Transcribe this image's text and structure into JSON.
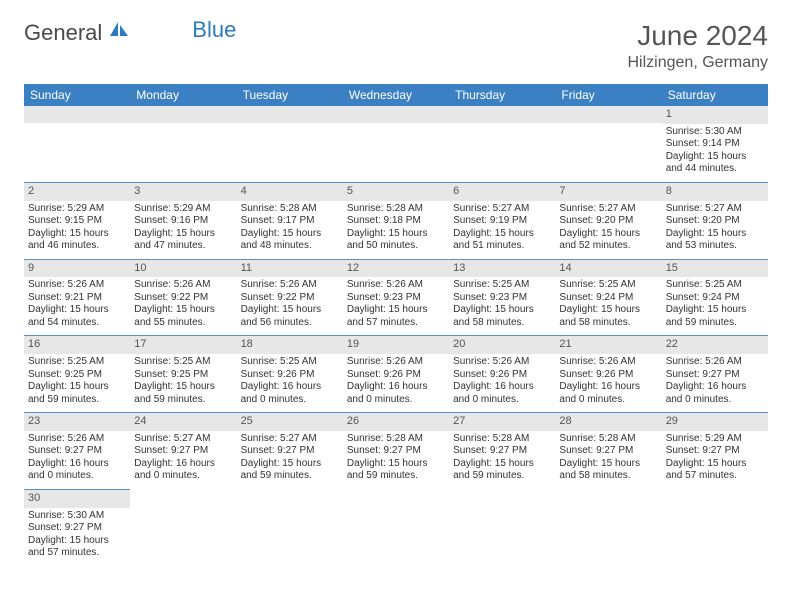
{
  "logo": {
    "text1": "General",
    "text2": "Blue"
  },
  "title": "June 2024",
  "location": "Hilzingen, Germany",
  "colors": {
    "header_bg": "#3b80c2",
    "header_text": "#ffffff",
    "daynum_bg": "#e7e7e7",
    "daynum_text": "#555555",
    "cell_text": "#333333",
    "border": "#5b8fc7",
    "logo_gray": "#4a4a4a",
    "logo_blue": "#2b7bbf",
    "title_color": "#555555"
  },
  "day_headers": [
    "Sunday",
    "Monday",
    "Tuesday",
    "Wednesday",
    "Thursday",
    "Friday",
    "Saturday"
  ],
  "weeks": [
    [
      {
        "day": "",
        "lines": []
      },
      {
        "day": "",
        "lines": []
      },
      {
        "day": "",
        "lines": []
      },
      {
        "day": "",
        "lines": []
      },
      {
        "day": "",
        "lines": []
      },
      {
        "day": "",
        "lines": []
      },
      {
        "day": "1",
        "lines": [
          "Sunrise: 5:30 AM",
          "Sunset: 9:14 PM",
          "Daylight: 15 hours",
          "and 44 minutes."
        ]
      }
    ],
    [
      {
        "day": "2",
        "lines": [
          "Sunrise: 5:29 AM",
          "Sunset: 9:15 PM",
          "Daylight: 15 hours",
          "and 46 minutes."
        ]
      },
      {
        "day": "3",
        "lines": [
          "Sunrise: 5:29 AM",
          "Sunset: 9:16 PM",
          "Daylight: 15 hours",
          "and 47 minutes."
        ]
      },
      {
        "day": "4",
        "lines": [
          "Sunrise: 5:28 AM",
          "Sunset: 9:17 PM",
          "Daylight: 15 hours",
          "and 48 minutes."
        ]
      },
      {
        "day": "5",
        "lines": [
          "Sunrise: 5:28 AM",
          "Sunset: 9:18 PM",
          "Daylight: 15 hours",
          "and 50 minutes."
        ]
      },
      {
        "day": "6",
        "lines": [
          "Sunrise: 5:27 AM",
          "Sunset: 9:19 PM",
          "Daylight: 15 hours",
          "and 51 minutes."
        ]
      },
      {
        "day": "7",
        "lines": [
          "Sunrise: 5:27 AM",
          "Sunset: 9:20 PM",
          "Daylight: 15 hours",
          "and 52 minutes."
        ]
      },
      {
        "day": "8",
        "lines": [
          "Sunrise: 5:27 AM",
          "Sunset: 9:20 PM",
          "Daylight: 15 hours",
          "and 53 minutes."
        ]
      }
    ],
    [
      {
        "day": "9",
        "lines": [
          "Sunrise: 5:26 AM",
          "Sunset: 9:21 PM",
          "Daylight: 15 hours",
          "and 54 minutes."
        ]
      },
      {
        "day": "10",
        "lines": [
          "Sunrise: 5:26 AM",
          "Sunset: 9:22 PM",
          "Daylight: 15 hours",
          "and 55 minutes."
        ]
      },
      {
        "day": "11",
        "lines": [
          "Sunrise: 5:26 AM",
          "Sunset: 9:22 PM",
          "Daylight: 15 hours",
          "and 56 minutes."
        ]
      },
      {
        "day": "12",
        "lines": [
          "Sunrise: 5:26 AM",
          "Sunset: 9:23 PM",
          "Daylight: 15 hours",
          "and 57 minutes."
        ]
      },
      {
        "day": "13",
        "lines": [
          "Sunrise: 5:25 AM",
          "Sunset: 9:23 PM",
          "Daylight: 15 hours",
          "and 58 minutes."
        ]
      },
      {
        "day": "14",
        "lines": [
          "Sunrise: 5:25 AM",
          "Sunset: 9:24 PM",
          "Daylight: 15 hours",
          "and 58 minutes."
        ]
      },
      {
        "day": "15",
        "lines": [
          "Sunrise: 5:25 AM",
          "Sunset: 9:24 PM",
          "Daylight: 15 hours",
          "and 59 minutes."
        ]
      }
    ],
    [
      {
        "day": "16",
        "lines": [
          "Sunrise: 5:25 AM",
          "Sunset: 9:25 PM",
          "Daylight: 15 hours",
          "and 59 minutes."
        ]
      },
      {
        "day": "17",
        "lines": [
          "Sunrise: 5:25 AM",
          "Sunset: 9:25 PM",
          "Daylight: 15 hours",
          "and 59 minutes."
        ]
      },
      {
        "day": "18",
        "lines": [
          "Sunrise: 5:25 AM",
          "Sunset: 9:26 PM",
          "Daylight: 16 hours",
          "and 0 minutes."
        ]
      },
      {
        "day": "19",
        "lines": [
          "Sunrise: 5:26 AM",
          "Sunset: 9:26 PM",
          "Daylight: 16 hours",
          "and 0 minutes."
        ]
      },
      {
        "day": "20",
        "lines": [
          "Sunrise: 5:26 AM",
          "Sunset: 9:26 PM",
          "Daylight: 16 hours",
          "and 0 minutes."
        ]
      },
      {
        "day": "21",
        "lines": [
          "Sunrise: 5:26 AM",
          "Sunset: 9:26 PM",
          "Daylight: 16 hours",
          "and 0 minutes."
        ]
      },
      {
        "day": "22",
        "lines": [
          "Sunrise: 5:26 AM",
          "Sunset: 9:27 PM",
          "Daylight: 16 hours",
          "and 0 minutes."
        ]
      }
    ],
    [
      {
        "day": "23",
        "lines": [
          "Sunrise: 5:26 AM",
          "Sunset: 9:27 PM",
          "Daylight: 16 hours",
          "and 0 minutes."
        ]
      },
      {
        "day": "24",
        "lines": [
          "Sunrise: 5:27 AM",
          "Sunset: 9:27 PM",
          "Daylight: 16 hours",
          "and 0 minutes."
        ]
      },
      {
        "day": "25",
        "lines": [
          "Sunrise: 5:27 AM",
          "Sunset: 9:27 PM",
          "Daylight: 15 hours",
          "and 59 minutes."
        ]
      },
      {
        "day": "26",
        "lines": [
          "Sunrise: 5:28 AM",
          "Sunset: 9:27 PM",
          "Daylight: 15 hours",
          "and 59 minutes."
        ]
      },
      {
        "day": "27",
        "lines": [
          "Sunrise: 5:28 AM",
          "Sunset: 9:27 PM",
          "Daylight: 15 hours",
          "and 59 minutes."
        ]
      },
      {
        "day": "28",
        "lines": [
          "Sunrise: 5:28 AM",
          "Sunset: 9:27 PM",
          "Daylight: 15 hours",
          "and 58 minutes."
        ]
      },
      {
        "day": "29",
        "lines": [
          "Sunrise: 5:29 AM",
          "Sunset: 9:27 PM",
          "Daylight: 15 hours",
          "and 57 minutes."
        ]
      }
    ],
    [
      {
        "day": "30",
        "lines": [
          "Sunrise: 5:30 AM",
          "Sunset: 9:27 PM",
          "Daylight: 15 hours",
          "and 57 minutes."
        ]
      },
      {
        "day": "",
        "lines": []
      },
      {
        "day": "",
        "lines": []
      },
      {
        "day": "",
        "lines": []
      },
      {
        "day": "",
        "lines": []
      },
      {
        "day": "",
        "lines": []
      },
      {
        "day": "",
        "lines": []
      }
    ]
  ]
}
